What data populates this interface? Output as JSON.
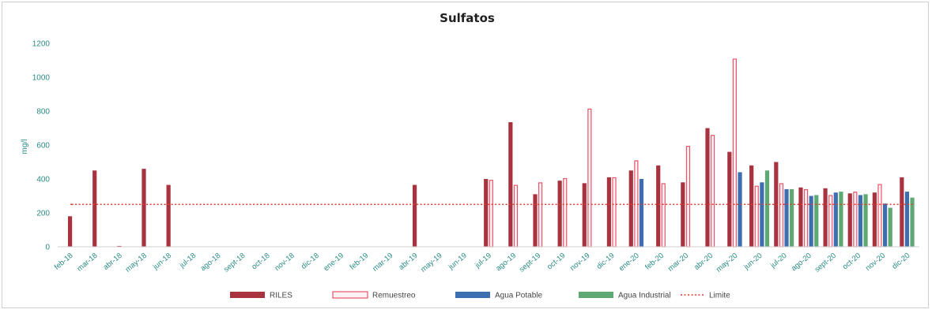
{
  "chart_data": {
    "type": "bar",
    "title": "Sulfatos",
    "ylabel": "mg/l",
    "xlabel": "",
    "ylim": [
      0,
      1200
    ],
    "yticks": [
      0,
      200,
      400,
      600,
      800,
      1000,
      1200
    ],
    "limit_value": 250,
    "grid": false,
    "legend_position": "bottom",
    "categories": [
      "feb-18",
      "mar-18",
      "abr-18",
      "may-18",
      "jun-18",
      "jul-18",
      "ago-18",
      "sept-18",
      "oct-18",
      "nov-18",
      "dic-18",
      "ene-19",
      "feb-19",
      "mar-19",
      "abr-19",
      "may-19",
      "jun-19",
      "jul-19",
      "ago-19",
      "sept-19",
      "oct-19",
      "nov-19",
      "dic-19",
      "ene-20",
      "feb-20",
      "mar-20",
      "abr-20",
      "may-20",
      "jun-20",
      "jul-20",
      "ago-20",
      "sept-20",
      "oct-20",
      "nov-20",
      "dic-20"
    ],
    "series": [
      {
        "name": "RILES",
        "color": "#a8323e",
        "style": "solid",
        "values": [
          180,
          450,
          5,
          460,
          365,
          null,
          null,
          null,
          null,
          null,
          null,
          null,
          null,
          null,
          365,
          null,
          null,
          400,
          735,
          310,
          390,
          375,
          410,
          450,
          480,
          380,
          700,
          560,
          480,
          500,
          350,
          345,
          315,
          320,
          410
        ]
      },
      {
        "name": "Remuestreo",
        "color": "#e8556a",
        "style": "outline",
        "values": [
          null,
          null,
          null,
          null,
          null,
          null,
          null,
          null,
          null,
          null,
          null,
          null,
          null,
          null,
          null,
          null,
          null,
          395,
          365,
          380,
          405,
          815,
          410,
          510,
          375,
          595,
          660,
          1110,
          360,
          375,
          340,
          305,
          325,
          370,
          null
        ]
      },
      {
        "name": "Agua Potable",
        "color": "#3d6fb0",
        "style": "solid",
        "values": [
          null,
          null,
          null,
          null,
          null,
          null,
          null,
          null,
          null,
          null,
          null,
          null,
          null,
          null,
          null,
          null,
          null,
          null,
          null,
          null,
          null,
          null,
          null,
          400,
          null,
          null,
          null,
          440,
          380,
          340,
          300,
          320,
          305,
          255,
          325
        ]
      },
      {
        "name": "Agua Industrial",
        "color": "#5da873",
        "style": "solid",
        "values": [
          null,
          null,
          null,
          null,
          null,
          null,
          null,
          null,
          null,
          null,
          null,
          null,
          null,
          null,
          null,
          null,
          null,
          null,
          null,
          null,
          null,
          null,
          null,
          null,
          null,
          null,
          null,
          null,
          450,
          340,
          305,
          325,
          310,
          230,
          290
        ]
      },
      {
        "name": "Limite",
        "color": "#e23a2e",
        "style": "dotted-line",
        "values": [
          250,
          250,
          250,
          250,
          250,
          250,
          250,
          250,
          250,
          250,
          250,
          250,
          250,
          250,
          250,
          250,
          250,
          250,
          250,
          250,
          250,
          250,
          250,
          250,
          250,
          250,
          250,
          250,
          250,
          250,
          250,
          250,
          250,
          250,
          250
        ]
      }
    ]
  }
}
